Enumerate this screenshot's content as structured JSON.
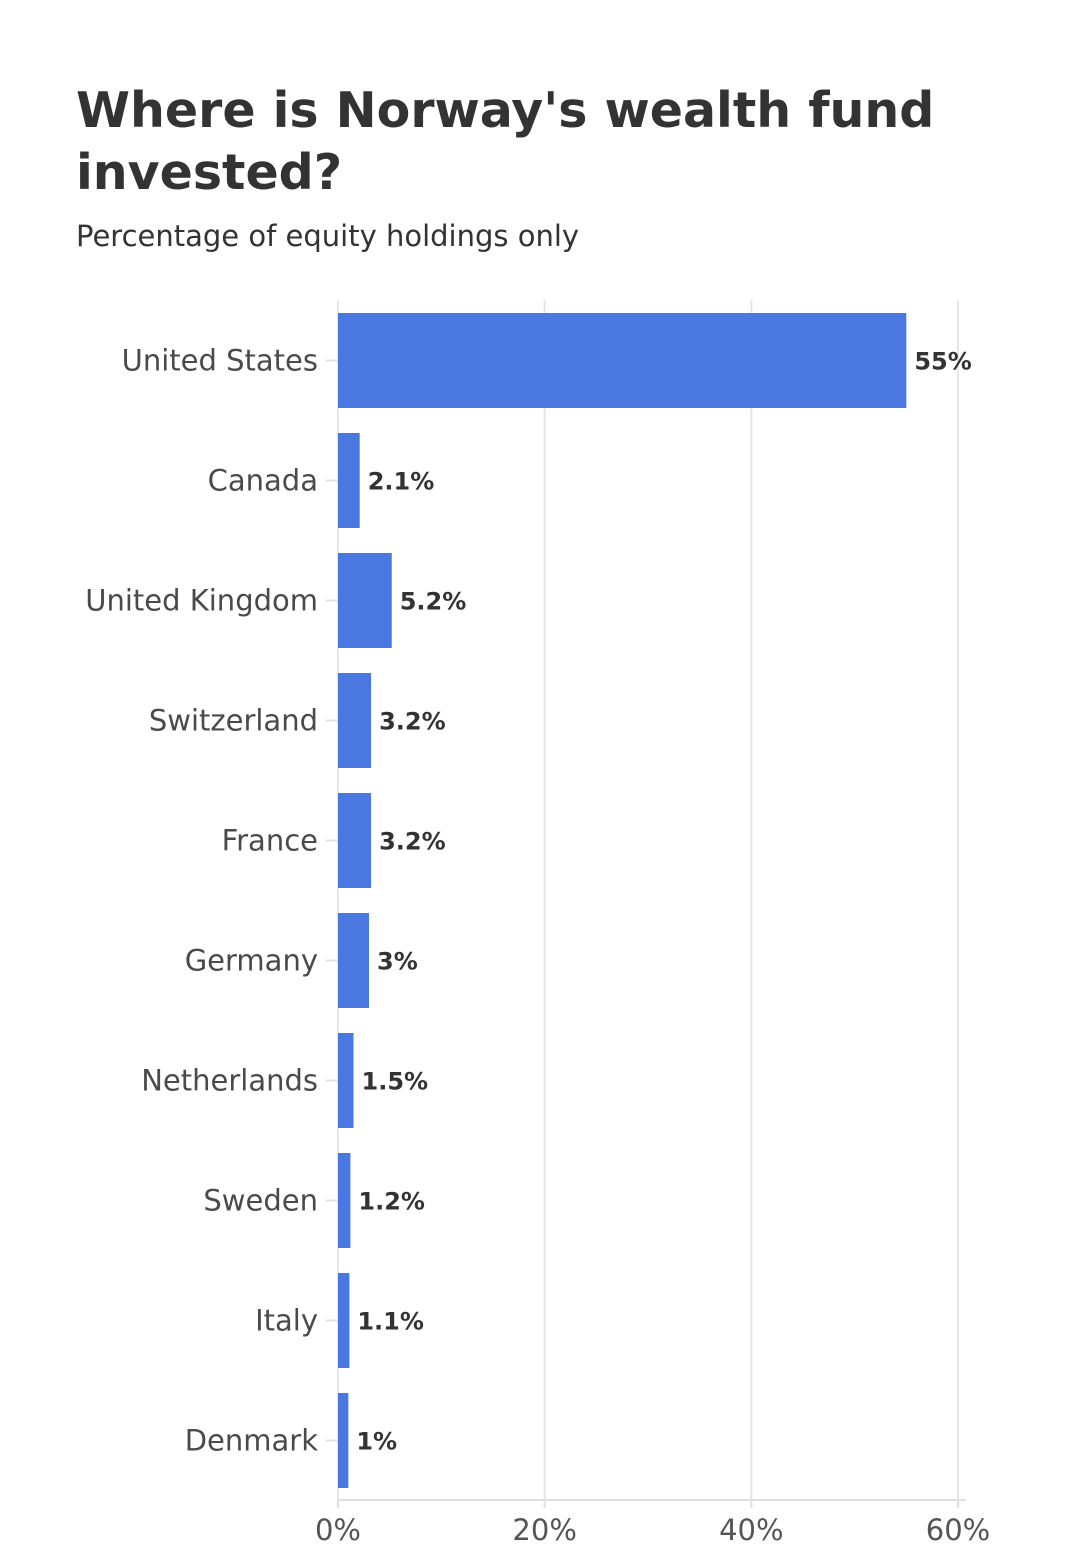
{
  "chart_data": {
    "type": "bar",
    "orientation": "horizontal",
    "title": "Where is Norway's wealth fund invested?",
    "subtitle": "Percentage of equity holdings only",
    "categories": [
      "United States",
      "Canada",
      "United Kingdom",
      "Switzerland",
      "France",
      "Germany",
      "Netherlands",
      "Sweden",
      "Italy",
      "Denmark"
    ],
    "values": [
      55,
      2.1,
      5.2,
      3.2,
      3.2,
      3,
      1.5,
      1.2,
      1.1,
      1
    ],
    "value_labels": [
      "55%",
      "2.1%",
      "5.2%",
      "3.2%",
      "3.2%",
      "3%",
      "1.5%",
      "1.2%",
      "1.1%",
      "1%"
    ],
    "xlim": [
      0,
      60
    ],
    "x_ticks": [
      0,
      20,
      40,
      60
    ],
    "x_tick_labels": [
      "0%",
      "20%",
      "40%",
      "60%"
    ],
    "xlabel": "",
    "ylabel": "",
    "grid": true,
    "legend": "none",
    "colors": {
      "bar": "#4a78e0",
      "grid": "#e6e6e6",
      "axis": "#e0e0e0"
    }
  }
}
